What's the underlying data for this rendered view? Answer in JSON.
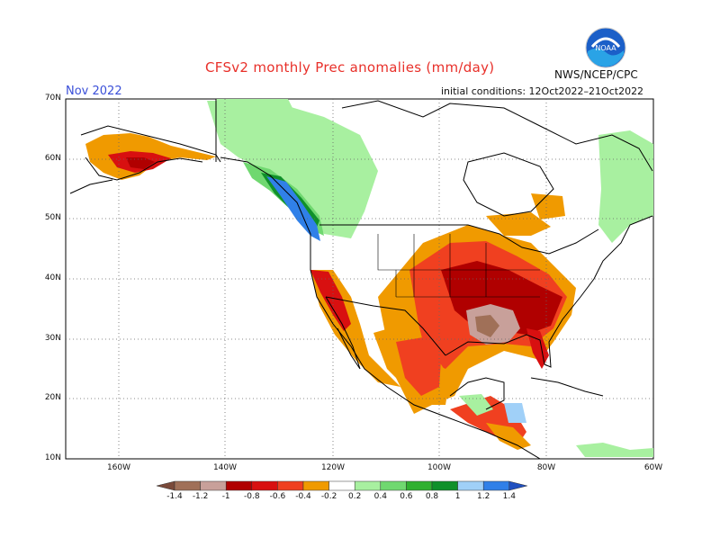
{
  "title": "CFSv2 monthly Prec anomalies (mm/day)",
  "month": "Nov 2022",
  "initial_conditions": "initial conditions: 12Oct2022–21Oct2022",
  "agency": "NWS/NCEP/CPC",
  "logo_text": "NOAA",
  "lat_labels": [
    "70N",
    "60N",
    "50N",
    "40N",
    "30N",
    "20N",
    "10N"
  ],
  "lon_labels": [
    "160W",
    "140W",
    "120W",
    "100W",
    "80W",
    "60W"
  ],
  "colorbar": {
    "labels": [
      "-1.4",
      "-1.2",
      "-1",
      "-0.8",
      "-0.6",
      "-0.4",
      "-0.2",
      "0.2",
      "0.4",
      "0.6",
      "0.8",
      "1",
      "1.2",
      "1.4"
    ],
    "colors": [
      "#7a4a3a",
      "#a07058",
      "#c8a09a",
      "#b00000",
      "#d81010",
      "#f04020",
      "#f09a00",
      "#ffffff",
      "#a8f0a0",
      "#70d870",
      "#30b030",
      "#10902a",
      "#a0d0f8",
      "#3080e8",
      "#2050c0"
    ]
  }
}
